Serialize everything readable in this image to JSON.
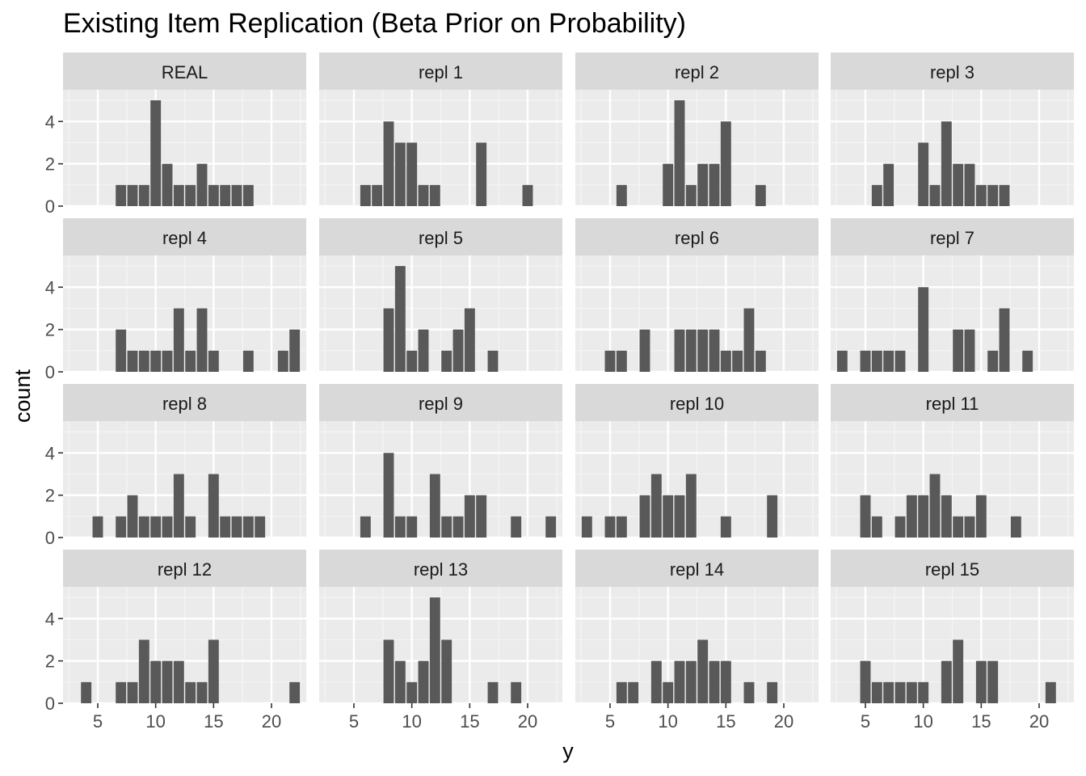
{
  "chart_data": {
    "type": "bar",
    "title": "Existing Item Replication (Beta Prior on Probability)",
    "xlabel": "y",
    "ylabel": "count",
    "xlim": [
      2,
      23
    ],
    "ylim": [
      0,
      5.5
    ],
    "x_ticks": [
      5,
      10,
      15,
      20
    ],
    "y_ticks": [
      0,
      2,
      4
    ],
    "grid": true,
    "bar_color": "#595959",
    "panel_background": "#ebebeb",
    "strip_background": "#d9d9d9",
    "panels": [
      {
        "label": "REAL",
        "bars": [
          [
            7,
            1
          ],
          [
            8,
            1
          ],
          [
            9,
            1
          ],
          [
            10,
            5
          ],
          [
            11,
            2
          ],
          [
            12,
            1
          ],
          [
            13,
            1
          ],
          [
            14,
            2
          ],
          [
            15,
            1
          ],
          [
            16,
            1
          ],
          [
            17,
            1
          ],
          [
            18,
            1
          ]
        ]
      },
      {
        "label": "repl  1",
        "bars": [
          [
            6,
            1
          ],
          [
            7,
            1
          ],
          [
            8,
            4
          ],
          [
            9,
            3
          ],
          [
            10,
            3
          ],
          [
            11,
            1
          ],
          [
            12,
            1
          ],
          [
            16,
            3
          ],
          [
            20,
            1
          ]
        ]
      },
      {
        "label": "repl  2",
        "bars": [
          [
            6,
            1
          ],
          [
            10,
            2
          ],
          [
            11,
            5
          ],
          [
            12,
            1
          ],
          [
            13,
            2
          ],
          [
            14,
            2
          ],
          [
            15,
            4
          ],
          [
            18,
            1
          ]
        ]
      },
      {
        "label": "repl  3",
        "bars": [
          [
            6,
            1
          ],
          [
            7,
            2
          ],
          [
            10,
            3
          ],
          [
            11,
            1
          ],
          [
            12,
            4
          ],
          [
            13,
            2
          ],
          [
            14,
            2
          ],
          [
            15,
            1
          ],
          [
            16,
            1
          ],
          [
            17,
            1
          ]
        ]
      },
      {
        "label": "repl  4",
        "bars": [
          [
            7,
            2
          ],
          [
            8,
            1
          ],
          [
            9,
            1
          ],
          [
            10,
            1
          ],
          [
            11,
            1
          ],
          [
            12,
            3
          ],
          [
            13,
            1
          ],
          [
            14,
            3
          ],
          [
            15,
            1
          ],
          [
            18,
            1
          ],
          [
            21,
            1
          ],
          [
            22,
            2
          ]
        ]
      },
      {
        "label": "repl  5",
        "bars": [
          [
            8,
            3
          ],
          [
            9,
            5
          ],
          [
            10,
            1
          ],
          [
            11,
            2
          ],
          [
            13,
            1
          ],
          [
            14,
            2
          ],
          [
            15,
            3
          ],
          [
            17,
            1
          ]
        ]
      },
      {
        "label": "repl  6",
        "bars": [
          [
            5,
            1
          ],
          [
            6,
            1
          ],
          [
            8,
            2
          ],
          [
            11,
            2
          ],
          [
            12,
            2
          ],
          [
            13,
            2
          ],
          [
            14,
            2
          ],
          [
            15,
            1
          ],
          [
            16,
            1
          ],
          [
            17,
            3
          ],
          [
            18,
            1
          ]
        ]
      },
      {
        "label": "repl  7",
        "bars": [
          [
            3,
            1
          ],
          [
            5,
            1
          ],
          [
            6,
            1
          ],
          [
            7,
            1
          ],
          [
            8,
            1
          ],
          [
            10,
            4
          ],
          [
            13,
            2
          ],
          [
            14,
            2
          ],
          [
            16,
            1
          ],
          [
            17,
            3
          ],
          [
            19,
            1
          ]
        ]
      },
      {
        "label": "repl  8",
        "bars": [
          [
            5,
            1
          ],
          [
            7,
            1
          ],
          [
            8,
            2
          ],
          [
            9,
            1
          ],
          [
            10,
            1
          ],
          [
            11,
            1
          ],
          [
            12,
            3
          ],
          [
            13,
            1
          ],
          [
            15,
            3
          ],
          [
            16,
            1
          ],
          [
            17,
            1
          ],
          [
            18,
            1
          ],
          [
            19,
            1
          ]
        ]
      },
      {
        "label": "repl  9",
        "bars": [
          [
            6,
            1
          ],
          [
            8,
            4
          ],
          [
            9,
            1
          ],
          [
            10,
            1
          ],
          [
            12,
            3
          ],
          [
            13,
            1
          ],
          [
            14,
            1
          ],
          [
            15,
            2
          ],
          [
            16,
            2
          ],
          [
            19,
            1
          ],
          [
            22,
            1
          ]
        ]
      },
      {
        "label": "repl  10",
        "bars": [
          [
            3,
            1
          ],
          [
            5,
            1
          ],
          [
            6,
            1
          ],
          [
            8,
            2
          ],
          [
            9,
            3
          ],
          [
            10,
            2
          ],
          [
            11,
            2
          ],
          [
            12,
            3
          ],
          [
            15,
            1
          ],
          [
            19,
            2
          ]
        ]
      },
      {
        "label": "repl  11",
        "bars": [
          [
            5,
            2
          ],
          [
            6,
            1
          ],
          [
            8,
            1
          ],
          [
            9,
            2
          ],
          [
            10,
            2
          ],
          [
            11,
            3
          ],
          [
            12,
            2
          ],
          [
            13,
            1
          ],
          [
            14,
            1
          ],
          [
            15,
            2
          ],
          [
            18,
            1
          ]
        ]
      },
      {
        "label": "repl  12",
        "bars": [
          [
            4,
            1
          ],
          [
            7,
            1
          ],
          [
            8,
            1
          ],
          [
            9,
            3
          ],
          [
            10,
            2
          ],
          [
            11,
            2
          ],
          [
            12,
            2
          ],
          [
            13,
            1
          ],
          [
            14,
            1
          ],
          [
            15,
            3
          ],
          [
            22,
            1
          ]
        ]
      },
      {
        "label": "repl  13",
        "bars": [
          [
            8,
            3
          ],
          [
            9,
            2
          ],
          [
            10,
            1
          ],
          [
            11,
            2
          ],
          [
            12,
            5
          ],
          [
            13,
            3
          ],
          [
            17,
            1
          ],
          [
            19,
            1
          ]
        ]
      },
      {
        "label": "repl  14",
        "bars": [
          [
            6,
            1
          ],
          [
            7,
            1
          ],
          [
            9,
            2
          ],
          [
            10,
            1
          ],
          [
            11,
            2
          ],
          [
            12,
            2
          ],
          [
            13,
            3
          ],
          [
            14,
            2
          ],
          [
            15,
            2
          ],
          [
            17,
            1
          ],
          [
            19,
            1
          ]
        ]
      },
      {
        "label": "repl  15",
        "bars": [
          [
            5,
            2
          ],
          [
            6,
            1
          ],
          [
            7,
            1
          ],
          [
            8,
            1
          ],
          [
            9,
            1
          ],
          [
            10,
            1
          ],
          [
            12,
            2
          ],
          [
            13,
            3
          ],
          [
            15,
            2
          ],
          [
            16,
            2
          ],
          [
            21,
            1
          ]
        ]
      }
    ]
  }
}
